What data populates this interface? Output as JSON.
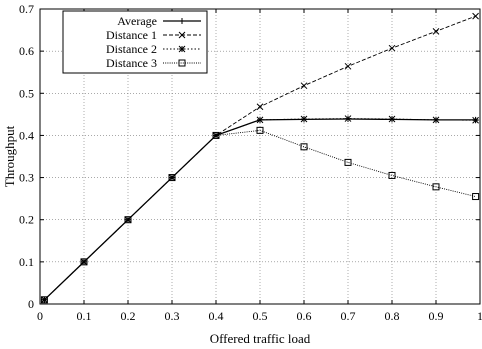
{
  "chart_data": {
    "type": "line",
    "title": "",
    "xlabel": "Offered traffic load",
    "ylabel": "Throughput",
    "xlim": [
      0,
      1
    ],
    "ylim": [
      0,
      0.7
    ],
    "xticks": [
      0,
      0.1,
      0.2,
      0.3,
      0.4,
      0.5,
      0.6,
      0.7,
      0.8,
      0.9,
      1
    ],
    "yticks": [
      0,
      0.1,
      0.2,
      0.3,
      0.4,
      0.5,
      0.6,
      0.7
    ],
    "grid": true,
    "legend_position": "top-left",
    "series": [
      {
        "name": "Average",
        "marker": "plus",
        "dash": "solid",
        "points": [
          [
            0.01,
            0.01
          ],
          [
            0.1,
            0.1
          ],
          [
            0.2,
            0.2
          ],
          [
            0.3,
            0.3
          ],
          [
            0.4,
            0.4
          ],
          [
            0.5,
            0.437
          ],
          [
            0.6,
            0.438
          ],
          [
            0.7,
            0.439
          ],
          [
            0.8,
            0.438
          ],
          [
            0.9,
            0.437
          ],
          [
            0.99,
            0.437
          ]
        ]
      },
      {
        "name": "Distance 1",
        "marker": "cross",
        "dash": "dashed",
        "points": [
          [
            0.01,
            0.01
          ],
          [
            0.1,
            0.1
          ],
          [
            0.2,
            0.2
          ],
          [
            0.3,
            0.3
          ],
          [
            0.4,
            0.4
          ],
          [
            0.5,
            0.468
          ],
          [
            0.6,
            0.518
          ],
          [
            0.7,
            0.564
          ],
          [
            0.8,
            0.607
          ],
          [
            0.9,
            0.647
          ],
          [
            0.99,
            0.683
          ]
        ]
      },
      {
        "name": "Distance 2",
        "marker": "star",
        "dash": "dotted",
        "points": [
          [
            0.01,
            0.01
          ],
          [
            0.1,
            0.1
          ],
          [
            0.2,
            0.2
          ],
          [
            0.3,
            0.3
          ],
          [
            0.4,
            0.4
          ],
          [
            0.5,
            0.437
          ],
          [
            0.6,
            0.439
          ],
          [
            0.7,
            0.44
          ],
          [
            0.8,
            0.439
          ],
          [
            0.9,
            0.437
          ],
          [
            0.99,
            0.436
          ]
        ]
      },
      {
        "name": "Distance 3",
        "marker": "square",
        "dash": "finedot",
        "points": [
          [
            0.01,
            0.01
          ],
          [
            0.1,
            0.1
          ],
          [
            0.2,
            0.2
          ],
          [
            0.3,
            0.3
          ],
          [
            0.4,
            0.4
          ],
          [
            0.5,
            0.412
          ],
          [
            0.6,
            0.373
          ],
          [
            0.7,
            0.336
          ],
          [
            0.8,
            0.305
          ],
          [
            0.9,
            0.278
          ],
          [
            0.99,
            0.255
          ]
        ]
      }
    ]
  }
}
